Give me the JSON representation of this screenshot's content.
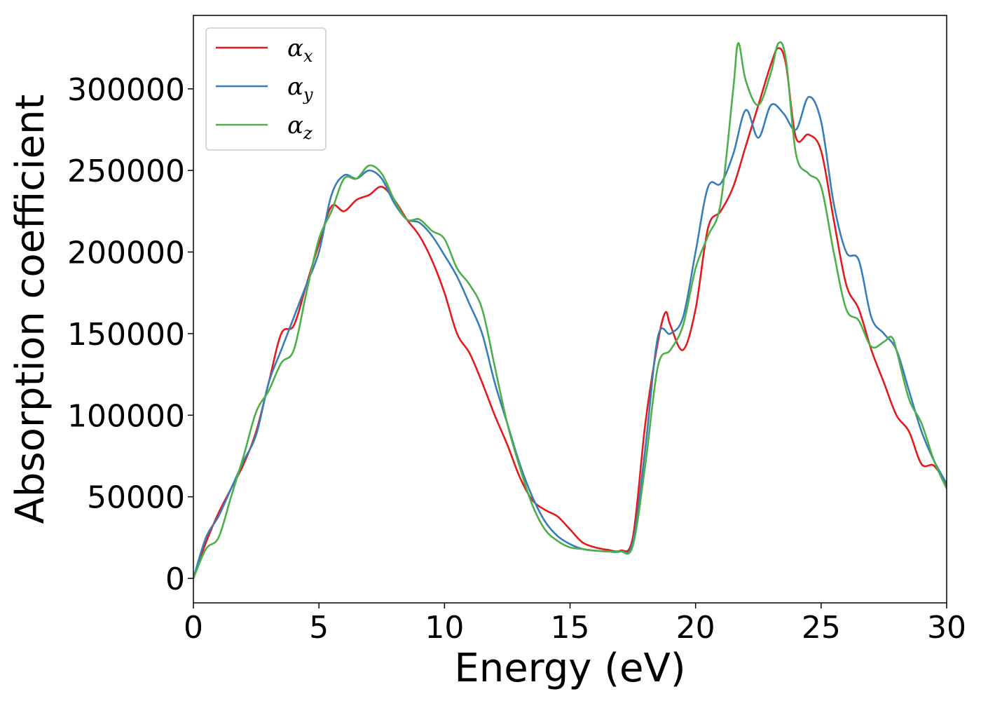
{
  "chart_data": {
    "type": "line",
    "xlabel": "Energy (eV)",
    "ylabel": "Absorption coefficient",
    "xlim": [
      0,
      30
    ],
    "ylim": [
      -15000,
      345000
    ],
    "xticks": [
      0,
      5,
      10,
      15,
      20,
      25,
      30
    ],
    "yticks": [
      0,
      50000,
      100000,
      150000,
      200000,
      250000,
      300000
    ],
    "grid": false,
    "legend": "upper-left",
    "series": [
      {
        "name": "αx",
        "color": "#e41a1c",
        "x": [
          0,
          0.5,
          1,
          1.5,
          2,
          2.5,
          3,
          3.5,
          4,
          4.5,
          5,
          5.5,
          6,
          6.5,
          7,
          7.5,
          8,
          8.5,
          9,
          9.5,
          10,
          10.5,
          11,
          11.5,
          12,
          12.5,
          13,
          13.5,
          14,
          14.5,
          15,
          15.5,
          16,
          16.5,
          17,
          17.5,
          18,
          18.5,
          18.8,
          19,
          19.5,
          20,
          20.5,
          21,
          21.5,
          22,
          22.5,
          23,
          23.3,
          23.6,
          24,
          24.5,
          25,
          25.5,
          26,
          26.5,
          27,
          27.5,
          28,
          28.5,
          29,
          29.5,
          30
        ],
        "y": [
          0,
          22000,
          40000,
          55000,
          70000,
          90000,
          120000,
          150000,
          155000,
          180000,
          205000,
          228000,
          225000,
          232000,
          235000,
          240000,
          232000,
          220000,
          210000,
          195000,
          175000,
          150000,
          138000,
          120000,
          100000,
          82000,
          62000,
          48000,
          42000,
          38000,
          30000,
          22000,
          19000,
          17500,
          17000,
          25000,
          95000,
          145000,
          163000,
          155000,
          140000,
          165000,
          215000,
          225000,
          240000,
          265000,
          290000,
          315000,
          325000,
          315000,
          270000,
          272000,
          262000,
          220000,
          180000,
          165000,
          140000,
          120000,
          100000,
          90000,
          70000,
          69000,
          57000
        ]
      },
      {
        "name": "αy",
        "color": "#377eb8",
        "x": [
          0,
          0.5,
          1,
          1.5,
          2,
          2.5,
          3,
          3.5,
          4,
          4.5,
          5,
          5.5,
          6,
          6.5,
          7,
          7.5,
          8,
          8.5,
          9,
          9.5,
          10,
          10.5,
          11,
          11.5,
          12,
          12.5,
          13,
          13.5,
          14,
          14.5,
          15,
          15.5,
          16,
          16.5,
          17,
          17.5,
          18,
          18.5,
          19,
          19.5,
          20,
          20.5,
          21,
          21.5,
          22,
          22.5,
          23,
          23.5,
          24,
          24.5,
          25,
          25.5,
          26,
          26.5,
          27,
          27.5,
          28,
          28.5,
          29,
          29.5,
          30
        ],
        "y": [
          0,
          25000,
          38000,
          55000,
          72000,
          88000,
          120000,
          140000,
          160000,
          180000,
          200000,
          235000,
          247000,
          245000,
          250000,
          245000,
          230000,
          220000,
          218000,
          210000,
          198000,
          185000,
          168000,
          150000,
          120000,
          95000,
          70000,
          50000,
          35000,
          26000,
          21000,
          18000,
          17000,
          16500,
          16500,
          22000,
          80000,
          148000,
          150000,
          160000,
          200000,
          240000,
          242000,
          260000,
          287000,
          270000,
          290000,
          285000,
          275000,
          295000,
          280000,
          230000,
          200000,
          195000,
          160000,
          150000,
          140000,
          115000,
          90000,
          72000,
          58000
        ]
      },
      {
        "name": "αz",
        "color": "#4daf4a",
        "x": [
          0,
          0.5,
          1,
          1.5,
          2,
          2.5,
          3,
          3.5,
          4,
          4.5,
          5,
          5.5,
          6,
          6.5,
          7,
          7.5,
          8,
          8.5,
          9,
          9.5,
          10,
          10.5,
          11,
          11.5,
          12,
          12.5,
          13,
          13.5,
          14,
          14.5,
          15,
          15.5,
          16,
          16.5,
          17,
          17.5,
          18,
          18.5,
          19,
          19.5,
          20,
          20.5,
          21,
          21.5,
          21.7,
          22,
          22.5,
          23,
          23.3,
          23.6,
          24,
          24.5,
          25,
          25.5,
          26,
          26.5,
          27,
          27.5,
          27.8,
          28,
          28.5,
          29,
          29.5,
          30
        ],
        "y": [
          0,
          18000,
          25000,
          50000,
          75000,
          102000,
          115000,
          132000,
          140000,
          175000,
          208000,
          225000,
          245000,
          245000,
          253000,
          248000,
          232000,
          220000,
          220000,
          213000,
          208000,
          190000,
          180000,
          165000,
          130000,
          95000,
          68000,
          45000,
          30000,
          23000,
          19000,
          18000,
          17000,
          16500,
          16500,
          20000,
          70000,
          130000,
          140000,
          155000,
          190000,
          210000,
          230000,
          300000,
          328000,
          305000,
          290000,
          310000,
          328000,
          318000,
          260000,
          248000,
          240000,
          200000,
          165000,
          158000,
          142000,
          145000,
          148000,
          140000,
          110000,
          95000,
          72000,
          55000
        ]
      }
    ]
  }
}
